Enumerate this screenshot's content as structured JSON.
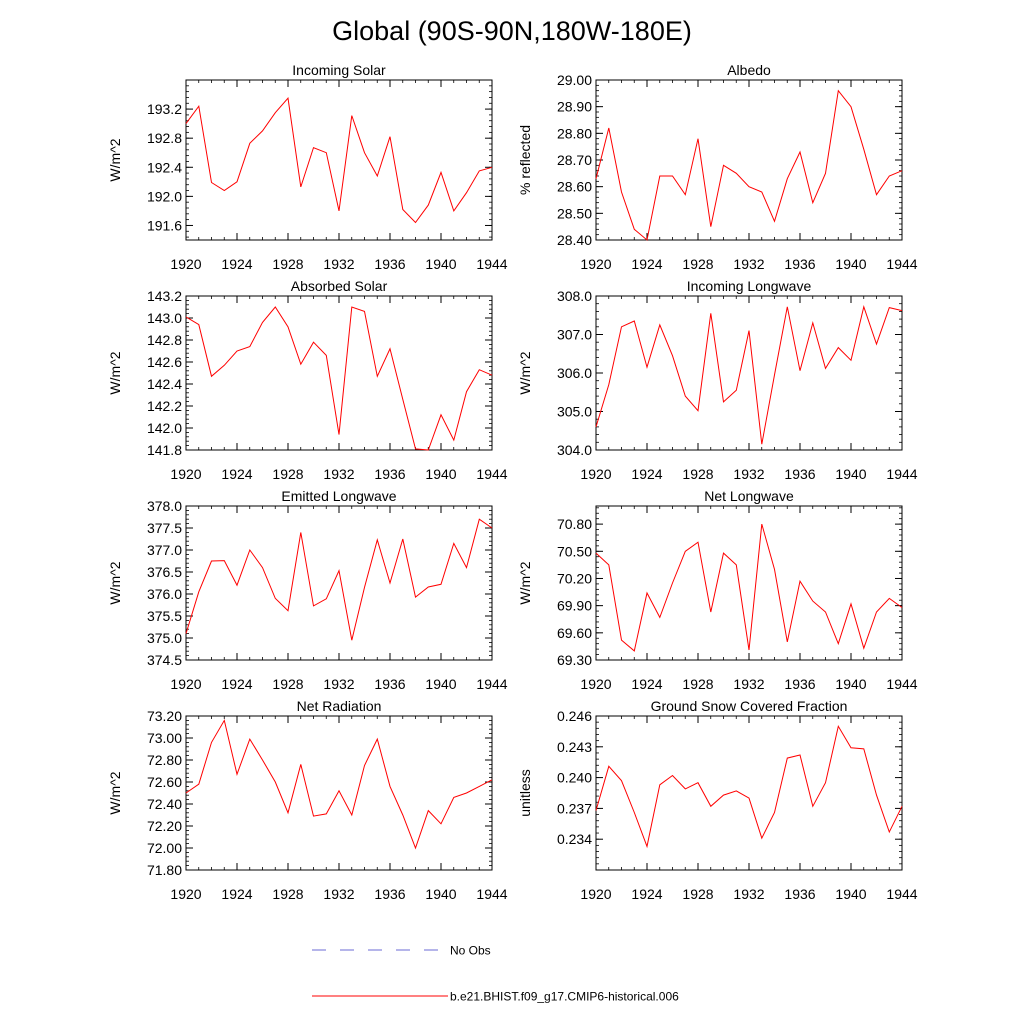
{
  "figure": {
    "title": "Global (90S-90N,180W-180E)"
  },
  "colors": {
    "series": "#ff0000",
    "obs": "#6b6bd6",
    "axis": "#000000"
  },
  "legend": {
    "obs_label": "No Obs",
    "model_label": "b.e21.BHIST.f09_g17.CMIP6-historical.006"
  },
  "chart_data": [
    {
      "type": "line",
      "title": "Incoming Solar",
      "xlabel": "",
      "ylabel": "W/m^2",
      "xlim": [
        1920,
        1944
      ],
      "ylim": [
        191.4,
        193.6
      ],
      "xticks": [
        1920,
        1924,
        1928,
        1932,
        1936,
        1940,
        1944
      ],
      "xtick_labels": [
        "1920",
        "1924",
        "1928",
        "1932",
        "1936",
        "1940",
        "1944"
      ],
      "yticks": [
        191.6,
        192.0,
        192.4,
        192.8,
        193.2
      ],
      "ytick_labels": [
        "191.6",
        "192.0",
        "192.4",
        "192.8",
        "193.2"
      ],
      "series": [
        {
          "name": "b.e21.BHIST.f09_g17.CMIP6-historical.006",
          "x": [
            1920,
            1921,
            1922,
            1923,
            1924,
            1925,
            1926,
            1927,
            1928,
            1929,
            1930,
            1931,
            1932,
            1933,
            1934,
            1935,
            1936,
            1937,
            1938,
            1939,
            1940,
            1941,
            1942,
            1943,
            1944
          ],
          "y": [
            193.0,
            193.24,
            192.19,
            192.08,
            192.2,
            192.73,
            192.9,
            193.15,
            193.35,
            192.13,
            192.67,
            192.6,
            191.8,
            193.11,
            192.6,
            192.28,
            192.82,
            191.82,
            191.64,
            191.88,
            192.33,
            191.8,
            192.05,
            192.35,
            192.4
          ]
        }
      ]
    },
    {
      "type": "line",
      "title": "Albedo",
      "xlabel": "",
      "ylabel": "% reflected",
      "xlim": [
        1920,
        1944
      ],
      "ylim": [
        28.4,
        29.0
      ],
      "xticks": [
        1920,
        1924,
        1928,
        1932,
        1936,
        1940,
        1944
      ],
      "xtick_labels": [
        "1920",
        "1924",
        "1928",
        "1932",
        "1936",
        "1940",
        "1944"
      ],
      "yticks": [
        28.4,
        28.5,
        28.6,
        28.7,
        28.8,
        28.9,
        29.0
      ],
      "ytick_labels": [
        "28.40",
        "28.50",
        "28.60",
        "28.70",
        "28.80",
        "28.90",
        "29.00"
      ],
      "series": [
        {
          "name": "b.e21.BHIST.f09_g17.CMIP6-historical.006",
          "x": [
            1920,
            1921,
            1922,
            1923,
            1924,
            1925,
            1926,
            1927,
            1928,
            1929,
            1930,
            1931,
            1932,
            1933,
            1934,
            1935,
            1936,
            1937,
            1938,
            1939,
            1940,
            1941,
            1942,
            1943,
            1944
          ],
          "y": [
            28.63,
            28.82,
            28.58,
            28.44,
            28.4,
            28.64,
            28.64,
            28.57,
            28.78,
            28.45,
            28.68,
            28.65,
            28.6,
            28.58,
            28.47,
            28.63,
            28.73,
            28.54,
            28.65,
            28.96,
            28.9,
            28.74,
            28.57,
            28.64,
            28.66
          ]
        }
      ]
    },
    {
      "type": "line",
      "title": "Absorbed Solar",
      "xlabel": "",
      "ylabel": "W/m^2",
      "xlim": [
        1920,
        1944
      ],
      "ylim": [
        141.8,
        143.2
      ],
      "xticks": [
        1920,
        1924,
        1928,
        1932,
        1936,
        1940,
        1944
      ],
      "xtick_labels": [
        "1920",
        "1924",
        "1928",
        "1932",
        "1936",
        "1940",
        "1944"
      ],
      "yticks": [
        141.8,
        142.0,
        142.2,
        142.4,
        142.6,
        142.8,
        143.0,
        143.2
      ],
      "ytick_labels": [
        "141.8",
        "142.0",
        "142.2",
        "142.4",
        "142.6",
        "142.8",
        "143.0",
        "143.2"
      ],
      "series": [
        {
          "name": "b.e21.BHIST.f09_g17.CMIP6-historical.006",
          "x": [
            1920,
            1921,
            1922,
            1923,
            1924,
            1925,
            1926,
            1927,
            1928,
            1929,
            1930,
            1931,
            1932,
            1933,
            1934,
            1935,
            1936,
            1937,
            1938,
            1939,
            1940,
            1941,
            1942,
            1943,
            1944
          ],
          "y": [
            143.01,
            142.94,
            142.47,
            142.57,
            142.7,
            142.74,
            142.96,
            143.1,
            142.92,
            142.58,
            142.78,
            142.66,
            141.94,
            143.1,
            143.06,
            142.47,
            142.72,
            142.26,
            141.81,
            141.8,
            142.12,
            141.89,
            142.33,
            142.53,
            142.48
          ]
        }
      ]
    },
    {
      "type": "line",
      "title": "Incoming Longwave",
      "xlabel": "",
      "ylabel": "W/m^2",
      "xlim": [
        1920,
        1944
      ],
      "ylim": [
        304.0,
        308.0
      ],
      "xticks": [
        1920,
        1924,
        1928,
        1932,
        1936,
        1940,
        1944
      ],
      "xtick_labels": [
        "1920",
        "1924",
        "1928",
        "1932",
        "1936",
        "1940",
        "1944"
      ],
      "yticks": [
        304.0,
        305.0,
        306.0,
        307.0,
        308.0
      ],
      "ytick_labels": [
        "304.0",
        "305.0",
        "306.0",
        "307.0",
        "308.0"
      ],
      "series": [
        {
          "name": "b.e21.BHIST.f09_g17.CMIP6-historical.006",
          "x": [
            1920,
            1921,
            1922,
            1923,
            1924,
            1925,
            1926,
            1927,
            1928,
            1929,
            1930,
            1931,
            1932,
            1933,
            1934,
            1935,
            1936,
            1937,
            1938,
            1939,
            1940,
            1941,
            1942,
            1943,
            1944
          ],
          "y": [
            304.6,
            305.7,
            307.2,
            307.35,
            306.15,
            307.25,
            306.45,
            305.4,
            305.02,
            307.55,
            305.25,
            305.55,
            307.1,
            304.15,
            305.95,
            307.72,
            306.06,
            307.3,
            306.12,
            306.66,
            306.33,
            307.72,
            306.75,
            307.7,
            307.62
          ]
        }
      ]
    },
    {
      "type": "line",
      "title": "Emitted Longwave",
      "xlabel": "",
      "ylabel": "W/m^2",
      "xlim": [
        1920,
        1944
      ],
      "ylim": [
        374.5,
        378.0
      ],
      "xticks": [
        1920,
        1924,
        1928,
        1932,
        1936,
        1940,
        1944
      ],
      "xtick_labels": [
        "1920",
        "1924",
        "1928",
        "1932",
        "1936",
        "1940",
        "1944"
      ],
      "yticks": [
        374.5,
        375.0,
        375.5,
        376.0,
        376.5,
        377.0,
        377.5,
        378.0
      ],
      "ytick_labels": [
        "374.5",
        "375.0",
        "375.5",
        "376.0",
        "376.5",
        "377.0",
        "377.5",
        "378.0"
      ],
      "series": [
        {
          "name": "b.e21.BHIST.f09_g17.CMIP6-historical.006",
          "x": [
            1920,
            1921,
            1922,
            1923,
            1924,
            1925,
            1926,
            1927,
            1928,
            1929,
            1930,
            1931,
            1932,
            1933,
            1934,
            1935,
            1936,
            1937,
            1938,
            1939,
            1940,
            1941,
            1942,
            1943,
            1944
          ],
          "y": [
            375.1,
            376.05,
            376.75,
            376.76,
            376.2,
            377.0,
            376.6,
            375.9,
            375.62,
            377.4,
            375.73,
            375.89,
            376.53,
            374.95,
            376.15,
            377.23,
            376.25,
            377.25,
            375.93,
            376.16,
            376.22,
            377.15,
            376.6,
            377.7,
            377.5
          ]
        }
      ]
    },
    {
      "type": "line",
      "title": "Net Longwave",
      "xlabel": "",
      "ylabel": "W/m^2",
      "xlim": [
        1920,
        1944
      ],
      "ylim": [
        69.3,
        71.0
      ],
      "xticks": [
        1920,
        1924,
        1928,
        1932,
        1936,
        1940,
        1944
      ],
      "xtick_labels": [
        "1920",
        "1924",
        "1928",
        "1932",
        "1936",
        "1940",
        "1944"
      ],
      "yticks": [
        69.3,
        69.6,
        69.9,
        70.2,
        70.5,
        70.8
      ],
      "ytick_labels": [
        "69.30",
        "69.60",
        "69.90",
        "70.20",
        "70.50",
        "70.80"
      ],
      "series": [
        {
          "name": "b.e21.BHIST.f09_g17.CMIP6-historical.006",
          "x": [
            1920,
            1921,
            1922,
            1923,
            1924,
            1925,
            1926,
            1927,
            1928,
            1929,
            1930,
            1931,
            1932,
            1933,
            1934,
            1935,
            1936,
            1937,
            1938,
            1939,
            1940,
            1941,
            1942,
            1943,
            1944
          ],
          "y": [
            70.48,
            70.35,
            69.52,
            69.4,
            70.04,
            69.77,
            70.15,
            70.5,
            70.6,
            69.83,
            70.48,
            70.35,
            69.41,
            70.8,
            70.3,
            69.5,
            70.17,
            69.95,
            69.83,
            69.48,
            69.92,
            69.43,
            69.83,
            69.98,
            69.88
          ]
        }
      ]
    },
    {
      "type": "line",
      "title": "Net Radiation",
      "xlabel": "",
      "ylabel": "W/m^2",
      "xlim": [
        1920,
        1944
      ],
      "ylim": [
        71.8,
        73.2
      ],
      "xticks": [
        1920,
        1924,
        1928,
        1932,
        1936,
        1940,
        1944
      ],
      "xtick_labels": [
        "1920",
        "1924",
        "1928",
        "1932",
        "1936",
        "1940",
        "1944"
      ],
      "yticks": [
        71.8,
        72.0,
        72.2,
        72.4,
        72.6,
        72.8,
        73.0,
        73.2
      ],
      "ytick_labels": [
        "71.80",
        "72.00",
        "72.20",
        "72.40",
        "72.60",
        "72.80",
        "73.00",
        "73.20"
      ],
      "series": [
        {
          "name": "b.e21.BHIST.f09_g17.CMIP6-historical.006",
          "x": [
            1920,
            1921,
            1922,
            1923,
            1924,
            1925,
            1926,
            1927,
            1928,
            1929,
            1930,
            1931,
            1932,
            1933,
            1934,
            1935,
            1936,
            1937,
            1938,
            1939,
            1940,
            1941,
            1942,
            1943,
            1944
          ],
          "y": [
            72.5,
            72.58,
            72.96,
            73.16,
            72.67,
            72.99,
            72.8,
            72.6,
            72.32,
            72.76,
            72.29,
            72.31,
            72.52,
            72.3,
            72.75,
            72.99,
            72.56,
            72.3,
            72.0,
            72.34,
            72.22,
            72.46,
            72.5,
            72.56,
            72.62
          ]
        }
      ]
    },
    {
      "type": "line",
      "title": "Ground Snow Covered Fraction",
      "xlabel": "",
      "ylabel": "unitless",
      "xlim": [
        1920,
        1944
      ],
      "ylim": [
        0.231,
        0.246
      ],
      "xticks": [
        1920,
        1924,
        1928,
        1932,
        1936,
        1940,
        1944
      ],
      "xtick_labels": [
        "1920",
        "1924",
        "1928",
        "1932",
        "1936",
        "1940",
        "1944"
      ],
      "yticks": [
        0.234,
        0.237,
        0.24,
        0.243,
        0.246
      ],
      "ytick_labels": [
        "0.234",
        "0.237",
        "0.240",
        "0.243",
        "0.246"
      ],
      "series": [
        {
          "name": "b.e21.BHIST.f09_g17.CMIP6-historical.006",
          "x": [
            1920,
            1921,
            1922,
            1923,
            1924,
            1925,
            1926,
            1927,
            1928,
            1929,
            1930,
            1931,
            1932,
            1933,
            1934,
            1935,
            1936,
            1937,
            1938,
            1939,
            1940,
            1941,
            1942,
            1943,
            1944
          ],
          "y": [
            0.2368,
            0.2411,
            0.2397,
            0.2366,
            0.2333,
            0.2393,
            0.2402,
            0.2389,
            0.2395,
            0.2372,
            0.2383,
            0.2387,
            0.238,
            0.2341,
            0.2366,
            0.2419,
            0.2422,
            0.2372,
            0.2395,
            0.245,
            0.2429,
            0.2428,
            0.2383,
            0.2347,
            0.2372
          ]
        }
      ]
    }
  ]
}
